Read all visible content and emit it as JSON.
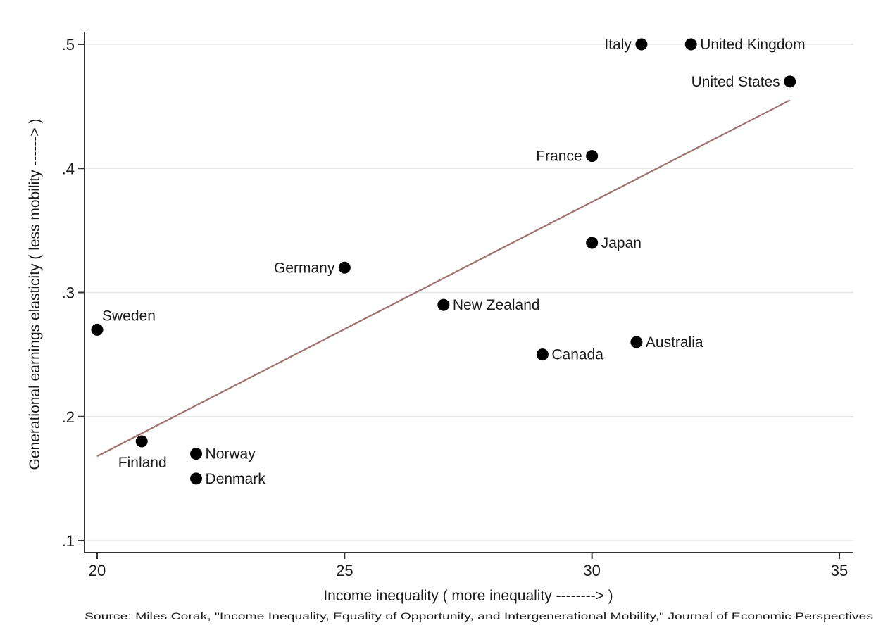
{
  "chart_data": {
    "type": "scatter",
    "xlabel": "Income inequality ( more inequality --------> )",
    "ylabel": "Generational earnings elasticity ( less mobility ------> )",
    "source": "Source: Miles Corak, \"Income Inequality, Equality of Opportunity, and Intergenerational Mobility,\" Journal of Economic Perspectives",
    "xlim": [
      20,
      35
    ],
    "ylim": [
      0.1,
      0.5
    ],
    "grid": "horizontal",
    "x_ticks": [
      20,
      25,
      30,
      35
    ],
    "x_tick_labels": [
      "20",
      "25",
      "30",
      "35"
    ],
    "y_ticks": [
      0.1,
      0.2,
      0.3,
      0.4,
      0.5
    ],
    "y_tick_labels": [
      ".1",
      ".2",
      ".3",
      ".4",
      ".5"
    ],
    "points": [
      {
        "label": "Italy",
        "x": 31.0,
        "y": 0.5,
        "label_side": "left"
      },
      {
        "label": "United Kingdom",
        "x": 32.0,
        "y": 0.5,
        "label_side": "right"
      },
      {
        "label": "United States",
        "x": 34.0,
        "y": 0.47,
        "label_side": "left"
      },
      {
        "label": "France",
        "x": 30.0,
        "y": 0.41,
        "label_side": "left"
      },
      {
        "label": "Japan",
        "x": 30.0,
        "y": 0.34,
        "label_side": "right"
      },
      {
        "label": "Germany",
        "x": 25.0,
        "y": 0.32,
        "label_side": "left"
      },
      {
        "label": "New Zealand",
        "x": 27.0,
        "y": 0.29,
        "label_side": "right"
      },
      {
        "label": "Sweden",
        "x": 20.0,
        "y": 0.27,
        "label_side": "above-right"
      },
      {
        "label": "Australia",
        "x": 30.9,
        "y": 0.26,
        "label_side": "right"
      },
      {
        "label": "Canada",
        "x": 29.0,
        "y": 0.25,
        "label_side": "right"
      },
      {
        "label": "Finland",
        "x": 20.9,
        "y": 0.18,
        "label_side": "below"
      },
      {
        "label": "Norway",
        "x": 22.0,
        "y": 0.17,
        "label_side": "right"
      },
      {
        "label": "Denmark",
        "x": 22.0,
        "y": 0.15,
        "label_side": "right"
      }
    ],
    "fit_line": {
      "x": [
        20,
        34
      ],
      "y": [
        0.168,
        0.455
      ],
      "color": "#a0706e"
    },
    "colors": {
      "marker": "#000000",
      "axis": "#333333",
      "grid": "#e6e6e6"
    }
  }
}
